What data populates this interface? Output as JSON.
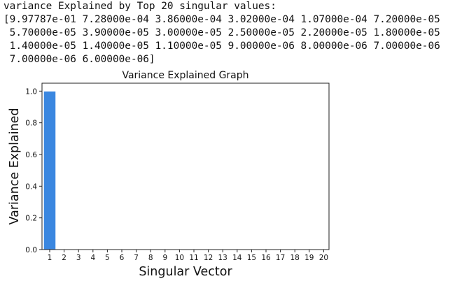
{
  "output": {
    "header": "variance Explained by Top 20 singular values:",
    "lines": [
      "[9.97787e-01 7.28000e-04 3.86000e-04 3.02000e-04 1.07000e-04 7.20000e-05",
      " 5.70000e-05 3.90000e-05 3.00000e-05 2.50000e-05 2.20000e-05 1.80000e-05",
      " 1.40000e-05 1.40000e-05 1.10000e-05 9.00000e-06 8.00000e-06 7.00000e-06",
      " 7.00000e-06 6.00000e-06]"
    ]
  },
  "chart_data": {
    "type": "bar",
    "title": "Variance Explained Graph",
    "xlabel": "Singular Vector",
    "ylabel": "Variance Explained",
    "categories": [
      "1",
      "2",
      "3",
      "4",
      "5",
      "6",
      "7",
      "8",
      "9",
      "10",
      "11",
      "12",
      "13",
      "14",
      "15",
      "16",
      "17",
      "18",
      "19",
      "20"
    ],
    "values": [
      0.997787,
      0.000728,
      0.000386,
      0.000302,
      0.000107,
      7.2e-05,
      5.7e-05,
      3.9e-05,
      3e-05,
      2.5e-05,
      2.2e-05,
      1.8e-05,
      1.4e-05,
      1.4e-05,
      1.1e-05,
      9e-06,
      8e-06,
      7e-06,
      7e-06,
      6e-06
    ],
    "yticks": [
      "0.0",
      "0.2",
      "0.4",
      "0.6",
      "0.8",
      "1.0"
    ],
    "ylim": [
      0,
      1.05
    ],
    "grid": false,
    "bar_color": "#3a87e0"
  }
}
